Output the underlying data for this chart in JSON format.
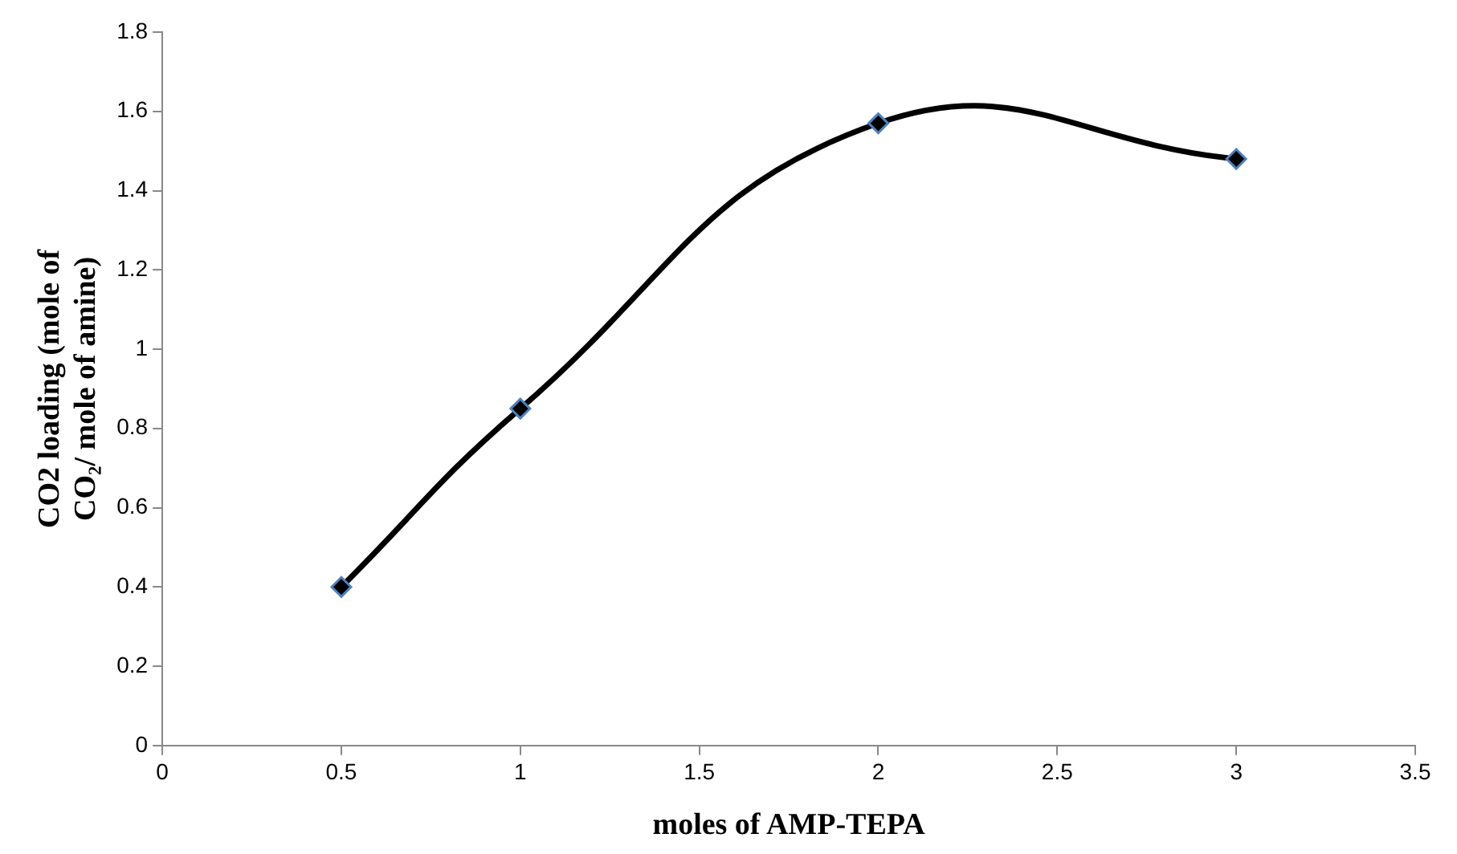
{
  "chart_data": {
    "type": "line",
    "xlabel": "moles of AMP-TEPA",
    "ylabel": "CO2 loading (mole of CO₂/ mole of amine)",
    "x": [
      0.5,
      1,
      2,
      3
    ],
    "series": [
      {
        "color": "#000000",
        "values": [
          0.4,
          0.85,
          1.57,
          1.48
        ]
      }
    ],
    "xlim": [
      0,
      3.5
    ],
    "xticks": [
      0,
      0.5,
      1,
      1.5,
      2,
      2.5,
      3,
      3.5
    ],
    "ylim": [
      0,
      1.8
    ],
    "yticks": [
      0,
      0.2,
      0.4,
      0.6,
      0.8,
      1,
      1.2,
      1.4,
      1.6,
      1.8
    ],
    "grid": false,
    "legend": false,
    "marker": "diamond",
    "line_style": "solid"
  }
}
